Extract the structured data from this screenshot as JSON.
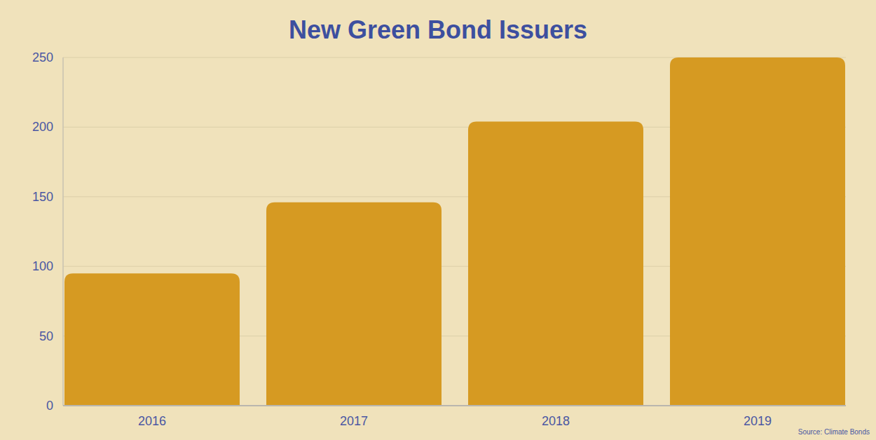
{
  "chart_data": {
    "type": "bar",
    "title": "New Green Bond Issuers",
    "categories": [
      "2016",
      "2017",
      "2018",
      "2019"
    ],
    "values": [
      95,
      146,
      204,
      250
    ],
    "color": "#d69a22",
    "ylim": [
      0,
      250
    ],
    "yticks": [
      0,
      50,
      100,
      150,
      200,
      250
    ],
    "grid": true,
    "source": "Source: Climate Bonds"
  }
}
